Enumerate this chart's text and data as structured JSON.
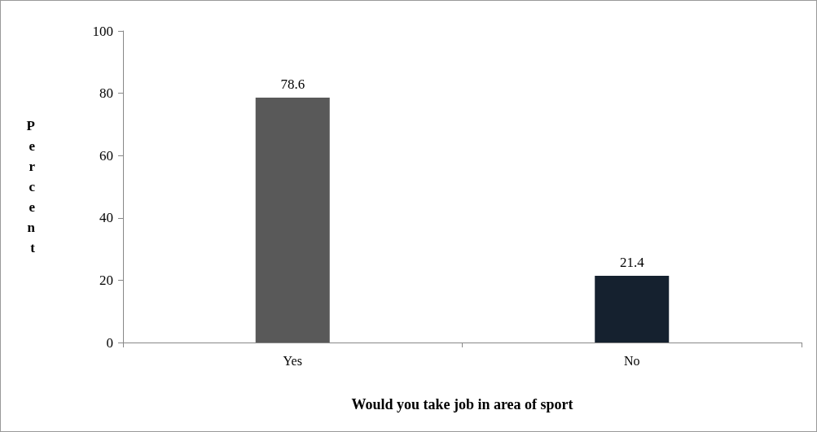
{
  "chart_data": {
    "type": "bar",
    "xlabel": "Would you take job in area of sport",
    "ylabel": "Percent",
    "categories": [
      "Yes",
      "No"
    ],
    "values": [
      78.6,
      21.4
    ],
    "colors": [
      "#595959",
      "#15212f"
    ],
    "ylim": [
      0,
      100
    ],
    "yticks": [
      0,
      20,
      40,
      60,
      80,
      100
    ],
    "data_labels": true
  }
}
